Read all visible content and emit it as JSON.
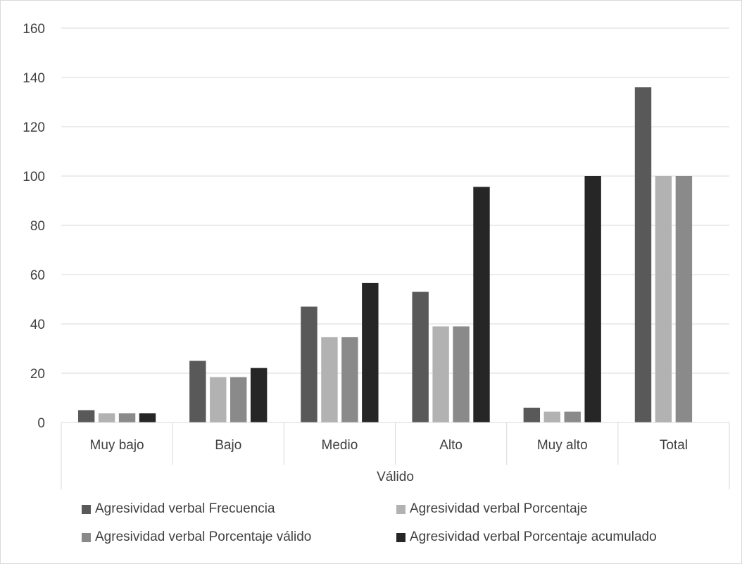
{
  "chart_data": {
    "type": "bar",
    "categories": [
      "Muy bajo",
      "Bajo",
      "Medio",
      "Alto",
      "Muy alto",
      "Total"
    ],
    "group_label": "Válido",
    "series": [
      {
        "name": "Agresividad verbal Frecuencia",
        "color": "#595959",
        "values": [
          5,
          25,
          47,
          53,
          6,
          136
        ]
      },
      {
        "name": "Agresividad verbal Porcentaje",
        "color": "#b2b2b2",
        "values": [
          3.7,
          18.4,
          34.6,
          39.0,
          4.4,
          100
        ]
      },
      {
        "name": "Agresividad verbal Porcentaje válido",
        "color": "#8a8a8a",
        "values": [
          3.7,
          18.4,
          34.6,
          39.0,
          4.4,
          100
        ]
      },
      {
        "name": "Agresividad verbal Porcentaje acumulado",
        "color": "#262626",
        "values": [
          3.7,
          22.1,
          56.6,
          95.6,
          100,
          null
        ]
      }
    ],
    "ylim": [
      0,
      160
    ],
    "yticks": [
      "0",
      "20",
      "40",
      "60",
      "80",
      "100",
      "120",
      "140",
      "160"
    ],
    "grid": true,
    "legend_position": "bottom"
  }
}
